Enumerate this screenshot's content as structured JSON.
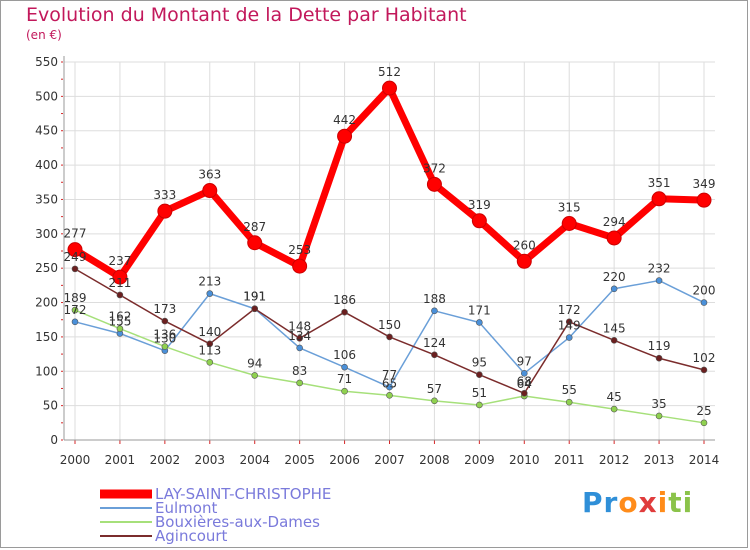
{
  "header": {
    "title": "Evolution du Montant de la Dette par Habitant",
    "subtitle": "(en €)"
  },
  "logo": {
    "text": "Proxiti"
  },
  "colors": {
    "title": "#c2185b",
    "grid": "#dddddd",
    "axis_ticks": "#d62728",
    "legend_text": "#7a7adb"
  },
  "chart_data": {
    "type": "line",
    "title": "Evolution du Montant de la Dette par Habitant",
    "subtitle": "(en €)",
    "xlabel": "",
    "ylabel": "",
    "x": [
      "2000",
      "2001",
      "2002",
      "2003",
      "2004",
      "2005",
      "2006",
      "2007",
      "2008",
      "2009",
      "2010",
      "2011",
      "2012",
      "2013",
      "2014"
    ],
    "ylim": [
      0,
      550
    ],
    "yticks": [
      0,
      50,
      100,
      150,
      200,
      250,
      300,
      350,
      400,
      450,
      500,
      550
    ],
    "grid": true,
    "legend_position": "bottom-left",
    "series": [
      {
        "name": "LAY-SAINT-CHRISTOPHE",
        "color": "#ff0000",
        "marker_color": "#ff0000",
        "values": [
          277,
          237,
          333,
          363,
          287,
          253,
          442,
          512,
          372,
          319,
          260,
          315,
          294,
          351,
          349
        ]
      },
      {
        "name": "Eulmont",
        "color": "#6a9fd8",
        "marker_color": "#4a90d9",
        "values": [
          172,
          155,
          130,
          213,
          191,
          134,
          106,
          77,
          188,
          171,
          97,
          149,
          220,
          232,
          200
        ]
      },
      {
        "name": "Bouxières-aux-Dames",
        "color": "#a6e07a",
        "marker_color": "#8fd14f",
        "values": [
          189,
          162,
          136,
          113,
          94,
          83,
          71,
          65,
          57,
          51,
          64,
          55,
          45,
          35,
          25
        ]
      },
      {
        "name": "Agincourt",
        "color": "#7b2c2c",
        "marker_color": "#6b1f1f",
        "values": [
          249,
          211,
          173,
          140,
          191,
          148,
          186,
          150,
          124,
          95,
          68,
          172,
          145,
          119,
          102
        ]
      }
    ]
  }
}
